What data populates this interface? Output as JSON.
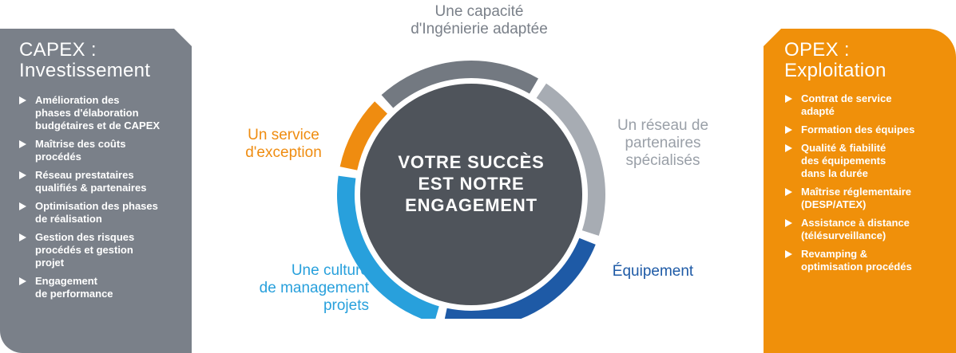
{
  "left_panel": {
    "title": "CAPEX :\nInvestissement",
    "items": [
      "Amélioration des\nphases d'élaboration\nbudgétaires et de CAPEX",
      "Maîtrise des coûts\nprocédés",
      "Réseau prestataires\nqualifiés & partenaires",
      "Optimisation des phases\nde réalisation",
      "Gestion des risques\nprocédés et gestion\nprojet",
      "Engagement\nde performance"
    ]
  },
  "right_panel": {
    "title": "OPEX :\nExploitation",
    "items": [
      "Contrat de service\nadapté",
      "Formation des équipes",
      "Qualité & fiabilité\ndes équipements\ndans la durée",
      "Maîtrise réglementaire\n(DESP/ATEX)",
      "Assistance à distance\n(télésurveillance)",
      "Revamping &\noptimisation procédés"
    ]
  },
  "center": {
    "text": "VOTRE SUCCÈS\nEST NOTRE\nENGAGEMENT"
  },
  "segments": {
    "top": "Une capacité\nd'Ingénierie adaptée",
    "right_upper": "Un réseau de\npartenaires\nspécialisés",
    "right_lower": "Équipement",
    "bottom": "Une culture\nde management\nprojets",
    "left": "Un service\nd'exception"
  },
  "colors": {
    "left_panel": "#7a8089",
    "right_panel": "#f0900a",
    "center_disc": "#4f545b",
    "seg_top": "#737981",
    "seg_right_upper": "#a7acb3",
    "seg_right_lower": "#1e5aa6",
    "seg_bottom": "#28a0dc",
    "seg_left": "#ef8c10"
  }
}
